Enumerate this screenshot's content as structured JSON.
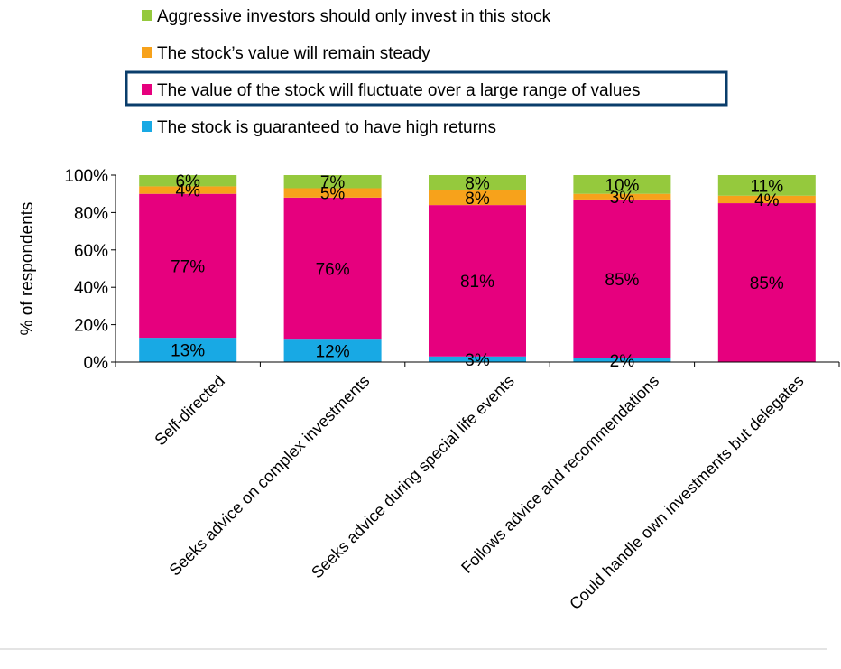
{
  "chart_data": {
    "type": "bar",
    "stacked": true,
    "ylabel": "% of respondents",
    "ylim": [
      0,
      100
    ],
    "yticks": [
      "0%",
      "20%",
      "40%",
      "60%",
      "80%",
      "100%"
    ],
    "categories": [
      "Self-directed",
      "Seeks advice on complex investments",
      "Seeks advice during special life events",
      "Follows advice and recommendations",
      "Could handle own investments but delegates"
    ],
    "series": [
      {
        "name": "The stock is guaranteed to have high returns",
        "color": "#18A9E4",
        "values": [
          13,
          12,
          3,
          2,
          0
        ],
        "labels": [
          "13%",
          "12%",
          "3%",
          "2%",
          ""
        ]
      },
      {
        "name": "The value of the stock will fluctuate over a large range of values",
        "color": "#E6007E",
        "values": [
          77,
          76,
          81,
          85,
          85
        ],
        "labels": [
          "77%",
          "76%",
          "81%",
          "85%",
          "85%"
        ]
      },
      {
        "name": "The stock’s value will remain steady",
        "color": "#F7A21B",
        "values": [
          4,
          5,
          8,
          3,
          4
        ],
        "labels": [
          "4%",
          "5%",
          "8%",
          "3%",
          "4%"
        ]
      },
      {
        "name": "Aggressive investors should only invest in this stock",
        "color": "#95C93D",
        "values": [
          6,
          7,
          8,
          10,
          11
        ],
        "labels": [
          "6%",
          "7%",
          "8%",
          "10%",
          "11%"
        ]
      }
    ],
    "legend_order": [
      3,
      2,
      1,
      0
    ],
    "highlighted_legend_entry": 1,
    "highlight_color": "#0A3D6B",
    "legend_position": "top"
  }
}
